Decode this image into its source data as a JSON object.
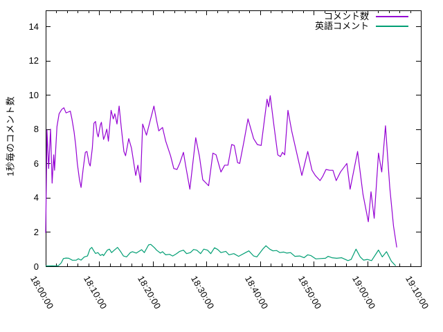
{
  "colors": {
    "series_comments": "#9400d3",
    "series_english": "#009e73",
    "axis": "#000000",
    "background": "#ffffff"
  },
  "chart_data": {
    "type": "line",
    "title": "",
    "xlabel": "",
    "ylabel": "1秒毎のコメント数",
    "grid": false,
    "x_axis": {
      "unit": "hh:mm:ss",
      "tick_labels": [
        "18:00:00",
        "18:10:00",
        "18:20:00",
        "18:30:00",
        "18:40:00",
        "18:50:00",
        "19:00:00",
        "19:10:00"
      ],
      "tick_minutes": [
        0,
        10,
        20,
        30,
        40,
        50,
        60,
        70
      ],
      "minor_tick_step_minutes": 2,
      "range_minutes": [
        0,
        70
      ]
    },
    "y_axis": {
      "ticks": [
        0,
        2,
        4,
        6,
        8,
        10,
        12,
        14
      ],
      "range": [
        0,
        14.93
      ]
    },
    "legend": {
      "position": "top-right-inside",
      "entries": [
        {
          "label": "コメント数",
          "color": "#9400d3"
        },
        {
          "label": "英語コメント",
          "color": "#009e73"
        }
      ]
    },
    "points_format": "[minutes after 18:00:00, comments per second]",
    "series": [
      {
        "name": "コメント数",
        "color": "#9400d3",
        "points": [
          [
            0,
            1.95
          ],
          [
            0.25,
            7.95
          ],
          [
            0.55,
            5.7
          ],
          [
            0.9,
            8.0
          ],
          [
            1.2,
            4.85
          ],
          [
            1.5,
            6.5
          ],
          [
            1.65,
            5.6
          ],
          [
            2.1,
            8.15
          ],
          [
            2.5,
            8.9
          ],
          [
            3.0,
            9.15
          ],
          [
            3.4,
            9.25
          ],
          [
            3.8,
            8.95
          ],
          [
            4.2,
            9.0
          ],
          [
            4.6,
            9.05
          ],
          [
            4.9,
            8.6
          ],
          [
            5.3,
            7.85
          ],
          [
            5.6,
            7.05
          ],
          [
            5.9,
            6.0
          ],
          [
            6.3,
            5.05
          ],
          [
            6.6,
            4.6
          ],
          [
            7.0,
            5.7
          ],
          [
            7.4,
            6.65
          ],
          [
            7.7,
            6.7
          ],
          [
            8.1,
            6.0
          ],
          [
            8.3,
            5.85
          ],
          [
            8.7,
            6.9
          ],
          [
            9.0,
            8.35
          ],
          [
            9.3,
            8.45
          ],
          [
            9.6,
            7.75
          ],
          [
            9.8,
            7.55
          ],
          [
            10.2,
            8.25
          ],
          [
            10.4,
            8.4
          ],
          [
            10.8,
            7.4
          ],
          [
            11.1,
            7.65
          ],
          [
            11.4,
            8.0
          ],
          [
            11.7,
            7.3
          ],
          [
            12.2,
            9.1
          ],
          [
            12.6,
            8.6
          ],
          [
            12.9,
            8.9
          ],
          [
            13.3,
            8.3
          ],
          [
            13.7,
            9.35
          ],
          [
            14.1,
            8.1
          ],
          [
            14.6,
            6.7
          ],
          [
            14.9,
            6.45
          ],
          [
            15.5,
            7.45
          ],
          [
            16.0,
            6.9
          ],
          [
            16.8,
            5.3
          ],
          [
            17.2,
            5.9
          ],
          [
            17.7,
            4.9
          ],
          [
            18.1,
            8.3
          ],
          [
            18.8,
            7.65
          ],
          [
            20.2,
            9.35
          ],
          [
            20.7,
            8.5
          ],
          [
            21.1,
            7.9
          ],
          [
            21.8,
            8.1
          ],
          [
            22.4,
            7.3
          ],
          [
            23.3,
            6.45
          ],
          [
            23.9,
            5.7
          ],
          [
            24.5,
            5.65
          ],
          [
            25.0,
            6.0
          ],
          [
            25.7,
            6.65
          ],
          [
            26.1,
            5.9
          ],
          [
            26.9,
            4.5
          ],
          [
            28.0,
            7.5
          ],
          [
            28.7,
            6.4
          ],
          [
            29.3,
            5.05
          ],
          [
            30.4,
            4.7
          ],
          [
            31.2,
            6.6
          ],
          [
            31.8,
            6.5
          ],
          [
            32.7,
            5.5
          ],
          [
            33.4,
            5.9
          ],
          [
            34.0,
            5.9
          ],
          [
            34.7,
            7.1
          ],
          [
            35.2,
            7.05
          ],
          [
            35.8,
            6.05
          ],
          [
            36.2,
            6.0
          ],
          [
            37.0,
            7.3
          ],
          [
            37.75,
            8.6
          ],
          [
            38.8,
            7.45
          ],
          [
            39.5,
            7.1
          ],
          [
            40.2,
            7.05
          ],
          [
            41.3,
            9.75
          ],
          [
            41.6,
            9.3
          ],
          [
            41.9,
            9.95
          ],
          [
            42.6,
            8.2
          ],
          [
            43.3,
            6.5
          ],
          [
            43.8,
            6.4
          ],
          [
            44.2,
            6.65
          ],
          [
            44.6,
            6.5
          ],
          [
            45.2,
            9.1
          ],
          [
            45.9,
            7.9
          ],
          [
            46.7,
            6.8
          ],
          [
            47.8,
            5.3
          ],
          [
            48.9,
            6.7
          ],
          [
            49.7,
            5.6
          ],
          [
            50.3,
            5.3
          ],
          [
            51.2,
            5.0
          ],
          [
            51.7,
            5.25
          ],
          [
            52.3,
            5.65
          ],
          [
            53.0,
            5.6
          ],
          [
            53.6,
            5.6
          ],
          [
            54.2,
            5.0
          ],
          [
            55.0,
            5.5
          ],
          [
            56.2,
            6.0
          ],
          [
            56.8,
            4.5
          ],
          [
            58.2,
            6.7
          ],
          [
            59.2,
            4.2
          ],
          [
            60.2,
            2.6
          ],
          [
            60.7,
            4.35
          ],
          [
            61.3,
            2.8
          ],
          [
            62.1,
            6.6
          ],
          [
            62.7,
            5.5
          ],
          [
            63.4,
            8.2
          ],
          [
            64.2,
            4.6
          ],
          [
            64.9,
            2.35
          ],
          [
            65.5,
            1.1
          ]
        ]
      },
      {
        "name": "英語コメント",
        "color": "#009e73",
        "points": [
          [
            0,
            0.02
          ],
          [
            0.6,
            0.02
          ],
          [
            1.2,
            0.03
          ],
          [
            1.8,
            0.02
          ],
          [
            2.4,
            0.04
          ],
          [
            2.9,
            0.2
          ],
          [
            3.3,
            0.45
          ],
          [
            3.8,
            0.48
          ],
          [
            4.3,
            0.47
          ],
          [
            5.0,
            0.35
          ],
          [
            5.7,
            0.36
          ],
          [
            6.1,
            0.44
          ],
          [
            6.6,
            0.36
          ],
          [
            7.2,
            0.54
          ],
          [
            7.8,
            0.6
          ],
          [
            8.25,
            1.0
          ],
          [
            8.6,
            1.1
          ],
          [
            8.9,
            0.94
          ],
          [
            9.3,
            0.75
          ],
          [
            9.75,
            0.8
          ],
          [
            10.2,
            0.63
          ],
          [
            10.6,
            0.7
          ],
          [
            10.8,
            0.62
          ],
          [
            11.5,
            0.94
          ],
          [
            11.9,
            1.0
          ],
          [
            12.3,
            0.8
          ],
          [
            12.8,
            0.94
          ],
          [
            13.4,
            1.1
          ],
          [
            14.0,
            0.85
          ],
          [
            14.5,
            0.6
          ],
          [
            15.1,
            0.55
          ],
          [
            15.8,
            0.8
          ],
          [
            16.2,
            0.85
          ],
          [
            16.9,
            0.77
          ],
          [
            17.9,
            0.97
          ],
          [
            18.4,
            0.8
          ],
          [
            19.2,
            1.25
          ],
          [
            19.6,
            1.28
          ],
          [
            20.3,
            1.08
          ],
          [
            20.7,
            0.94
          ],
          [
            21.4,
            0.77
          ],
          [
            21.8,
            0.85
          ],
          [
            22.4,
            0.67
          ],
          [
            23.1,
            0.7
          ],
          [
            23.7,
            0.6
          ],
          [
            24.4,
            0.73
          ],
          [
            25.0,
            0.87
          ],
          [
            25.7,
            0.94
          ],
          [
            26.3,
            0.74
          ],
          [
            27.0,
            0.8
          ],
          [
            27.6,
            0.98
          ],
          [
            28.2,
            0.94
          ],
          [
            28.9,
            0.74
          ],
          [
            29.5,
            1.0
          ],
          [
            30.2,
            0.94
          ],
          [
            30.8,
            0.74
          ],
          [
            31.5,
            1.08
          ],
          [
            32.1,
            0.98
          ],
          [
            32.7,
            0.8
          ],
          [
            33.6,
            0.87
          ],
          [
            34.2,
            0.67
          ],
          [
            35.1,
            0.74
          ],
          [
            36.0,
            0.58
          ],
          [
            37.3,
            0.8
          ],
          [
            37.9,
            0.9
          ],
          [
            38.8,
            0.6
          ],
          [
            39.4,
            0.55
          ],
          [
            40.5,
            1.0
          ],
          [
            41.1,
            1.2
          ],
          [
            41.8,
            1.0
          ],
          [
            42.4,
            0.9
          ],
          [
            43.1,
            0.92
          ],
          [
            43.7,
            0.8
          ],
          [
            44.4,
            0.83
          ],
          [
            45.0,
            0.77
          ],
          [
            45.7,
            0.8
          ],
          [
            46.5,
            0.58
          ],
          [
            47.4,
            0.6
          ],
          [
            48.2,
            0.5
          ],
          [
            48.9,
            0.67
          ],
          [
            49.5,
            0.62
          ],
          [
            50.4,
            0.43
          ],
          [
            51.3,
            0.45
          ],
          [
            52.2,
            0.47
          ],
          [
            52.7,
            0.58
          ],
          [
            53.4,
            0.5
          ],
          [
            54.3,
            0.47
          ],
          [
            55.2,
            0.5
          ],
          [
            56.4,
            0.33
          ],
          [
            57.0,
            0.4
          ],
          [
            57.9,
            1.0
          ],
          [
            58.7,
            0.54
          ],
          [
            59.3,
            0.36
          ],
          [
            60.0,
            0.4
          ],
          [
            60.8,
            0.33
          ],
          [
            62.1,
            0.95
          ],
          [
            62.8,
            0.55
          ],
          [
            63.6,
            0.85
          ],
          [
            64.5,
            0.3
          ],
          [
            65.3,
            0.03
          ]
        ]
      }
    ]
  }
}
